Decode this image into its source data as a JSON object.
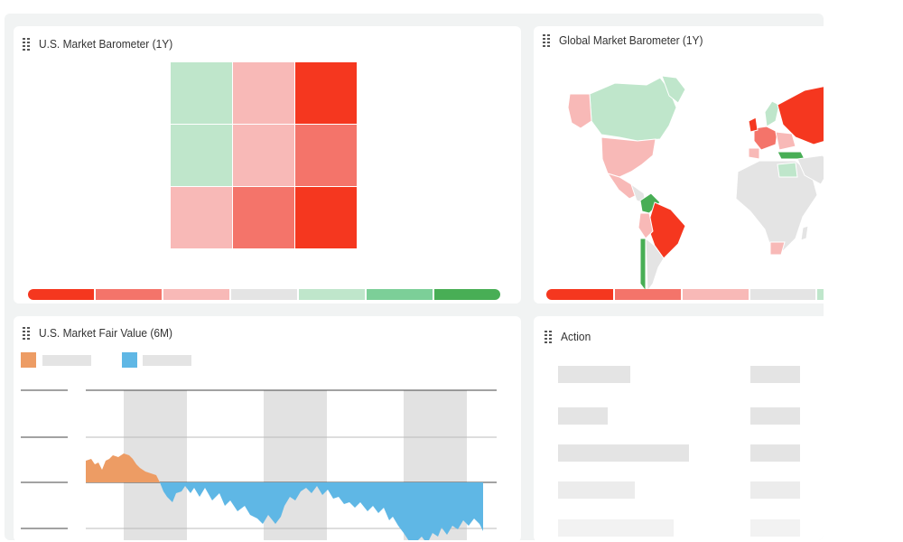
{
  "cards": {
    "us_barometer": {
      "title": "U.S. Market Barometer (1Y)"
    },
    "global_barometer": {
      "title": "Global Market Barometer (1Y)"
    },
    "fair_value": {
      "title": "U.S. Market Fair Value (6M)"
    },
    "action": {
      "title": "Action"
    }
  },
  "colors": {
    "strong_red": "#f5371f",
    "red": "#f4746a",
    "light_red": "#f8b9b7",
    "neutral": "#e4e4e4",
    "light_green": "#bfe6cb",
    "green": "#7ccf98",
    "strong_green": "#48ae55",
    "orange_series": "#ed9c64",
    "blue_series": "#5fb7e5"
  },
  "heatmap": [
    [
      "light_green",
      "light_red",
      "strong_red"
    ],
    [
      "light_green",
      "light_red",
      "red"
    ],
    [
      "light_red",
      "red",
      "strong_red"
    ]
  ],
  "scale_steps": [
    "strong_red",
    "red",
    "light_red",
    "neutral",
    "light_green",
    "green",
    "strong_green"
  ],
  "legend": [
    {
      "color_key": "orange_series"
    },
    {
      "color_key": "blue_series"
    }
  ]
}
